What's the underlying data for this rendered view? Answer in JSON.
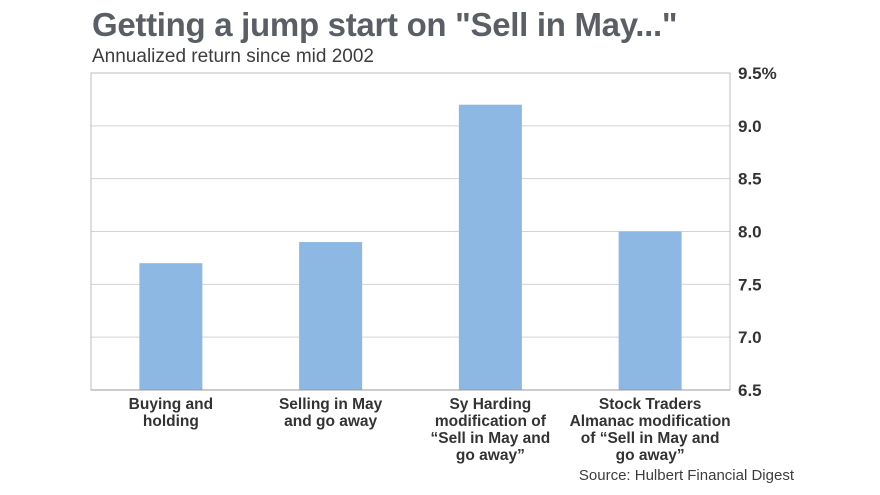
{
  "chart_data": {
    "type": "bar",
    "title": "Getting a jump start on \"Sell in May...\"",
    "subtitle": "Annualized return since mid 2002",
    "categories": [
      [
        "Buying and",
        "holding"
      ],
      [
        "Selling in May",
        "and go away"
      ],
      [
        "Sy Harding",
        "modification of",
        "“Sell in May and",
        "go away”"
      ],
      [
        "Stock Traders",
        "Almanac modification",
        "of “Sell in May and",
        "go away”"
      ]
    ],
    "values": [
      7.7,
      7.9,
      9.2,
      8.0
    ],
    "ylim": [
      6.5,
      9.5
    ],
    "yticks": [
      "9.5%",
      "9.0",
      "8.5",
      "8.0",
      "7.5",
      "7.0",
      "6.5"
    ],
    "ytick_values": [
      9.5,
      9.0,
      8.5,
      8.0,
      7.5,
      7.0,
      6.5
    ],
    "y_axis_position": "right",
    "grid": true,
    "bar_color": "#8cb8e3",
    "source": "Source: Hulbert Financial Digest"
  }
}
